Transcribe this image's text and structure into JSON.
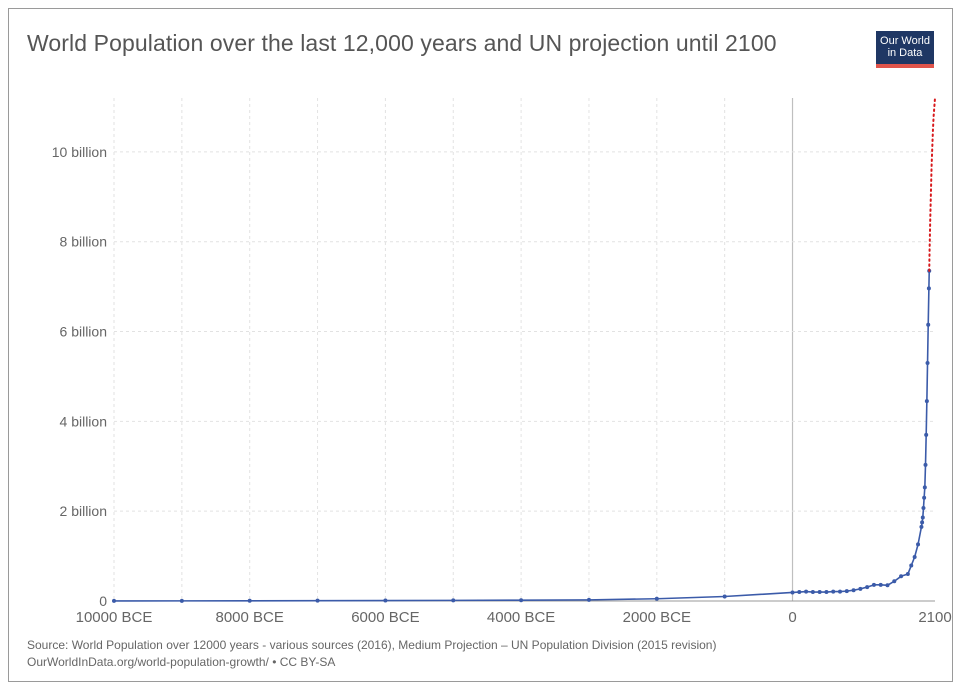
{
  "chart_data": {
    "type": "line",
    "title": "World Population over the last 12,000 years and UN projection until 2100",
    "logo": {
      "line1": "Our World",
      "line2": "in Data"
    },
    "xlim": [
      -10000,
      2100
    ],
    "ylim": [
      0,
      11200000000
    ],
    "grid": true,
    "x_ticks": [
      {
        "value": -10000,
        "label": "10000 BCE"
      },
      {
        "value": -8000,
        "label": "8000 BCE"
      },
      {
        "value": -6000,
        "label": "6000 BCE"
      },
      {
        "value": -4000,
        "label": "4000 BCE"
      },
      {
        "value": -2000,
        "label": "2000 BCE"
      },
      {
        "value": 0,
        "label": "0"
      },
      {
        "value": 2100,
        "label": "2100"
      }
    ],
    "x_gridlines": [
      -10000,
      -9000,
      -8000,
      -7000,
      -6000,
      -5000,
      -4000,
      -3000,
      -2000,
      -1000,
      0
    ],
    "y_ticks": [
      {
        "value": 0,
        "label": "0"
      },
      {
        "value": 2000000000,
        "label": "2 billion"
      },
      {
        "value": 4000000000,
        "label": "4 billion"
      },
      {
        "value": 6000000000,
        "label": "6 billion"
      },
      {
        "value": 8000000000,
        "label": "8 billion"
      },
      {
        "value": 10000000000,
        "label": "10 billion"
      }
    ],
    "series": [
      {
        "color": "#3b5ba9",
        "style": "solid-with-markers",
        "x": [
          -10000,
          -9000,
          -8000,
          -7000,
          -6000,
          -5000,
          -4000,
          -3000,
          -2000,
          -1000,
          0,
          100,
          200,
          300,
          400,
          500,
          600,
          700,
          800,
          900,
          1000,
          1100,
          1200,
          1300,
          1400,
          1500,
          1600,
          1700,
          1750,
          1800,
          1850,
          1900,
          1910,
          1920,
          1930,
          1940,
          1950,
          1960,
          1970,
          1980,
          1990,
          2000,
          2010,
          2015
        ],
        "y": [
          2000000,
          3000000,
          5000000,
          7000000,
          10000000,
          14000000,
          18000000,
          25000000,
          50000000,
          100000000,
          190000000,
          200000000,
          210000000,
          200000000,
          200000000,
          200000000,
          210000000,
          210000000,
          220000000,
          240000000,
          270000000,
          310000000,
          360000000,
          360000000,
          350000000,
          440000000,
          550000000,
          600000000,
          790000000,
          980000000,
          1260000000,
          1650000000,
          1750000000,
          1860000000,
          2070000000,
          2300000000,
          2530000000,
          3030000000,
          3700000000,
          4450000000,
          5300000000,
          6150000000,
          6960000000,
          7350000000
        ]
      },
      {
        "color": "#d7191c",
        "style": "dotted",
        "x": [
          2015,
          2020,
          2030,
          2040,
          2050,
          2060,
          2070,
          2080,
          2090,
          2100
        ],
        "y": [
          7350000000,
          7800000000,
          8500000000,
          9100000000,
          9700000000,
          10100000000,
          10500000000,
          10800000000,
          11000000000,
          11200000000
        ]
      }
    ]
  },
  "source": {
    "line1": "Source: World Population over 12000 years - various sources (2016), Medium Projection – UN Population Division (2015 revision)",
    "line2": "OurWorldInData.org/world-population-growth/ • CC BY-SA"
  }
}
